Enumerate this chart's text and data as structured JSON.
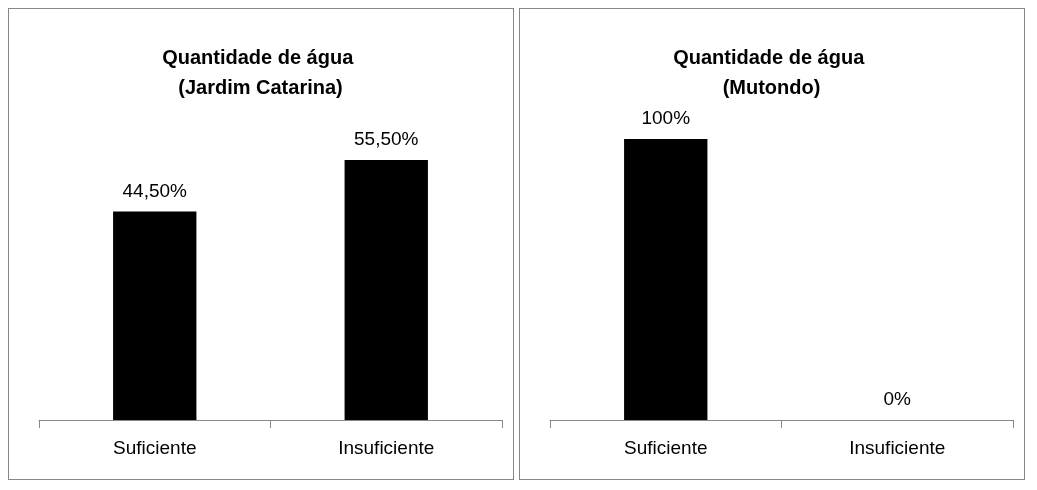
{
  "chart_data": [
    {
      "type": "bar",
      "title": "Quantidade de água (Jardim Catarina)",
      "categories": [
        "Suficiente",
        "Insuficiente"
      ],
      "values": [
        44.5,
        55.5
      ],
      "value_labels": [
        "44,50%",
        "55,50%"
      ],
      "color": "#000000"
    },
    {
      "type": "bar",
      "title": "Quantidade de água (Mutondo)",
      "categories": [
        "Suficiente",
        "Insuficiente"
      ],
      "values": [
        100,
        0
      ],
      "value_labels": [
        "100%",
        "0%"
      ],
      "color": "#000000"
    }
  ]
}
